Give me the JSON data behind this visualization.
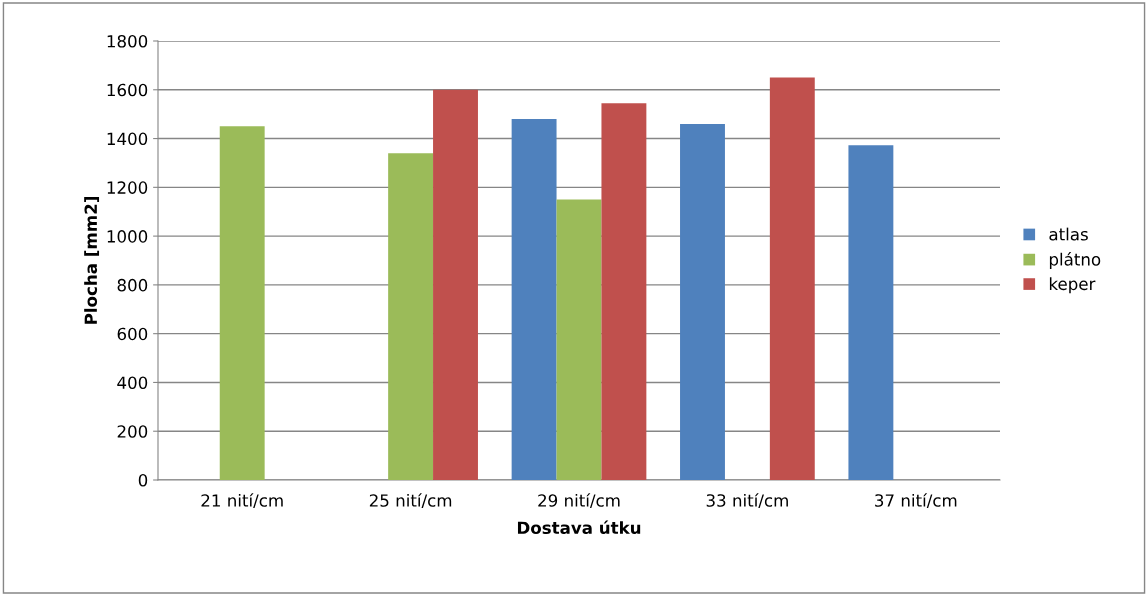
{
  "chart_data": {
    "type": "bar",
    "xlabel": "Dostava útku",
    "ylabel": "Plocha [mm2]",
    "categories": [
      "21 nití/cm",
      "25 nití/cm",
      "29 nití/cm",
      "33 nití/cm",
      "37 nití/cm"
    ],
    "series": [
      {
        "name": "atlas",
        "color": "#4f81bd",
        "values": [
          null,
          null,
          1480,
          1460,
          1373
        ]
      },
      {
        "name": "plátno",
        "color": "#9bbb59",
        "values": [
          1450,
          1340,
          1150,
          null,
          null
        ]
      },
      {
        "name": "keper",
        "color": "#c0504d",
        "values": [
          null,
          1600,
          1545,
          1650,
          null
        ]
      }
    ],
    "ylim": [
      0,
      1800
    ],
    "yticks": [
      0,
      200,
      400,
      600,
      800,
      1000,
      1200,
      1400,
      1600,
      1800
    ],
    "grid": "y",
    "legend": "right"
  }
}
